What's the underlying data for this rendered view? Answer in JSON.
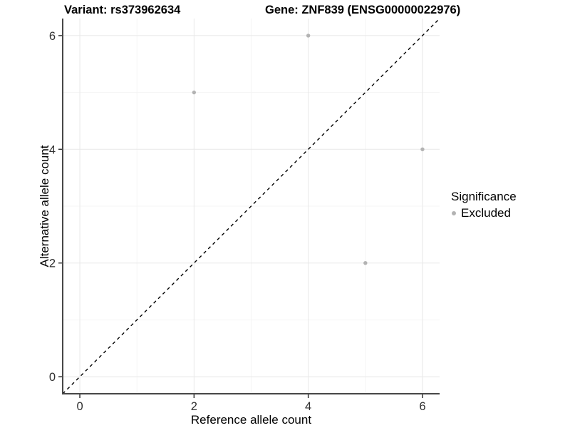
{
  "titles": {
    "variant": "Variant: rs373962634",
    "gene": "Gene: ZNF839 (ENSG00000022976)"
  },
  "legend": {
    "title": "Significance",
    "items": [
      {
        "label": "Excluded",
        "color": "#b3b3b3"
      }
    ]
  },
  "chart_data": {
    "type": "scatter",
    "title": "Variant: rs373962634   Gene: ZNF839 (ENSG00000022976)",
    "xlabel": "Reference allele count",
    "ylabel": "Alternative allele count",
    "xlim": [
      -0.3,
      6.3
    ],
    "ylim": [
      -0.3,
      6.3
    ],
    "x_ticks": [
      0,
      2,
      4,
      6
    ],
    "y_ticks": [
      0,
      2,
      4,
      6
    ],
    "x_minor_ticks": [
      1,
      3,
      5
    ],
    "y_minor_ticks": [
      1,
      3,
      5
    ],
    "grid": true,
    "legend_position": "right",
    "legend_title": "Significance",
    "series": [
      {
        "name": "Excluded",
        "color": "#b3b3b3",
        "points": [
          {
            "x": 2,
            "y": 5
          },
          {
            "x": 4,
            "y": 6
          },
          {
            "x": 5,
            "y": 2
          },
          {
            "x": 6,
            "y": 4
          }
        ]
      }
    ],
    "reference_line": {
      "type": "identity",
      "style": "dashed",
      "color": "#000000",
      "from": [
        -0.3,
        -0.3
      ],
      "to": [
        6.3,
        6.3
      ]
    }
  },
  "colors": {
    "background": "#ffffff",
    "grid_major": "#e8e8e8",
    "grid_minor": "#f4f4f4",
    "axis_line": "#474747",
    "tick_mark": "#333333",
    "tick_label": "#303030",
    "axis_title": "#000000",
    "point": "#b3b3b3"
  }
}
